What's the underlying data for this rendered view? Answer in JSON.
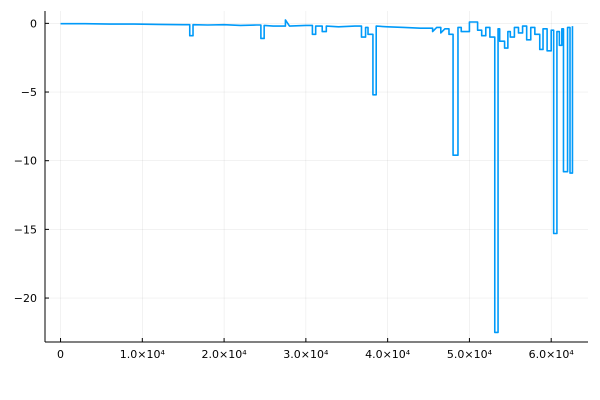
{
  "chart_data": {
    "type": "line",
    "title": "",
    "xlabel": "",
    "ylabel": "",
    "xlim": [
      -1900,
      64500
    ],
    "ylim": [
      -23.2,
      0.9
    ],
    "grid": true,
    "legend": "none",
    "series": [
      {
        "color": "#009af9",
        "x": [
          0,
          3000,
          6000,
          9000,
          12000,
          15000,
          15800,
          15800,
          16200,
          16200,
          18000,
          20000,
          22000,
          24000,
          24500,
          24500,
          24900,
          24900,
          26000,
          27500,
          27500,
          28000,
          30000,
          30800,
          30800,
          31200,
          31200,
          32000,
          32000,
          32500,
          32500,
          34000,
          36000,
          36800,
          36800,
          37300,
          37300,
          37600,
          37600,
          38200,
          38200,
          38600,
          38600,
          40000,
          42000,
          44000,
          45500,
          45500,
          46000,
          46500,
          46500,
          47000,
          47500,
          47500,
          48000,
          48000,
          48600,
          48600,
          49000,
          49000,
          50000,
          50000,
          51000,
          51000,
          51500,
          51500,
          52000,
          52000,
          52500,
          52500,
          53100,
          53100,
          53500,
          53500,
          53700,
          53700,
          54300,
          54300,
          54700,
          54700,
          55000,
          55000,
          55500,
          55500,
          56000,
          56000,
          56500,
          56500,
          57000,
          57000,
          57500,
          57500,
          58000,
          58000,
          58600,
          58600,
          59000,
          59000,
          59500,
          59500,
          60000,
          60000,
          60300,
          60300,
          60700,
          60700,
          61000,
          61000,
          61300,
          61300,
          61500,
          61500,
          62000,
          62000,
          62300,
          62300,
          62600,
          62600
        ],
        "y": [
          -0.02,
          -0.02,
          -0.05,
          -0.05,
          -0.08,
          -0.1,
          -0.1,
          -0.9,
          -0.9,
          -0.1,
          -0.12,
          -0.1,
          -0.15,
          -0.12,
          -0.12,
          -1.1,
          -1.1,
          -0.15,
          -0.2,
          -0.2,
          0.25,
          -0.2,
          -0.15,
          -0.15,
          -0.8,
          -0.8,
          -0.2,
          -0.2,
          -0.6,
          -0.6,
          -0.2,
          -0.25,
          -0.2,
          -0.2,
          -1.0,
          -1.0,
          -0.3,
          -0.3,
          -0.8,
          -0.8,
          -5.2,
          -5.2,
          -0.2,
          -0.25,
          -0.3,
          -0.35,
          -0.35,
          -0.6,
          -0.3,
          -0.3,
          -0.7,
          -0.4,
          -0.4,
          -0.8,
          -0.8,
          -9.6,
          -9.6,
          -0.3,
          -0.3,
          -0.6,
          -0.6,
          0.1,
          0.1,
          -0.5,
          -0.5,
          -0.9,
          -0.9,
          -0.3,
          -0.3,
          -1.0,
          -1.0,
          -22.5,
          -22.5,
          -0.4,
          -0.4,
          -1.3,
          -1.3,
          -1.8,
          -1.8,
          -0.6,
          -0.6,
          -1.0,
          -1.0,
          -0.3,
          -0.3,
          -0.7,
          -0.7,
          -0.2,
          -0.2,
          -1.2,
          -1.2,
          -0.3,
          -0.3,
          -0.8,
          -0.8,
          -1.9,
          -1.9,
          -0.4,
          -0.4,
          -2.0,
          -2.0,
          -0.5,
          -0.5,
          -15.3,
          -15.3,
          -0.6,
          -0.6,
          -1.6,
          -1.6,
          -0.4,
          -0.4,
          -10.8,
          -10.8,
          -0.3,
          -0.3,
          -10.9,
          -10.9,
          -0.2
        ]
      }
    ],
    "x_ticks": [
      {
        "value": 0,
        "label": "0"
      },
      {
        "value": 10000,
        "label": "1.0×10⁴"
      },
      {
        "value": 20000,
        "label": "2.0×10⁴"
      },
      {
        "value": 30000,
        "label": "3.0×10⁴"
      },
      {
        "value": 40000,
        "label": "4.0×10⁴"
      },
      {
        "value": 50000,
        "label": "5.0×10⁴"
      },
      {
        "value": 60000,
        "label": "6.0×10⁴"
      }
    ],
    "y_ticks": [
      {
        "value": 0,
        "label": "0"
      },
      {
        "value": -5,
        "label": "−5"
      },
      {
        "value": -10,
        "label": "−10"
      },
      {
        "value": -15,
        "label": "−15"
      },
      {
        "value": -20,
        "label": "−20"
      }
    ]
  }
}
